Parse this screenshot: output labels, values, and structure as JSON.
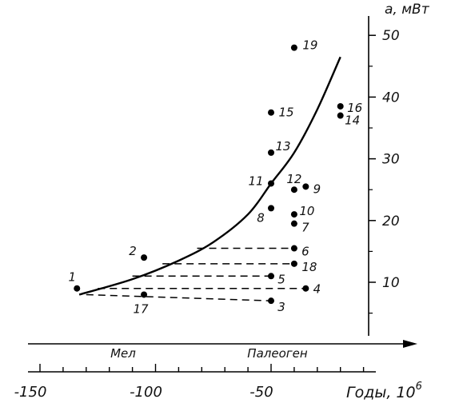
{
  "chart_data": {
    "type": "scatter",
    "ylabel": "a, мВт",
    "xlabel": "Годы, 10",
    "xlabel_exponent": "6",
    "xlim": [
      -150,
      0
    ],
    "ylim": [
      0,
      55
    ],
    "x_ticks": [
      -150,
      -100,
      -50
    ],
    "x_tick_labels": [
      "-150",
      "-100",
      "-50"
    ],
    "y_ticks": [
      10,
      20,
      30,
      40,
      50
    ],
    "y_tick_labels": [
      "10",
      "20",
      "30",
      "40",
      "50"
    ],
    "periods": [
      "Мел",
      "Палеоген"
    ],
    "points": [
      {
        "label": "1",
        "x": -134,
        "y": 9
      },
      {
        "label": "2",
        "x": -105,
        "y": 14
      },
      {
        "label": "3",
        "x": -50,
        "y": 7
      },
      {
        "label": "4",
        "x": -35,
        "y": 9
      },
      {
        "label": "5",
        "x": -50,
        "y": 11
      },
      {
        "label": "6",
        "x": -40,
        "y": 15.5
      },
      {
        "label": "7",
        "x": -40,
        "y": 19.5
      },
      {
        "label": "8",
        "x": -50,
        "y": 22
      },
      {
        "label": "9",
        "x": -35,
        "y": 25.5
      },
      {
        "label": "10",
        "x": -40,
        "y": 21
      },
      {
        "label": "11",
        "x": -50,
        "y": 26
      },
      {
        "label": "12",
        "x": -40,
        "y": 25
      },
      {
        "label": "13",
        "x": -50,
        "y": 31
      },
      {
        "label": "14",
        "x": -20,
        "y": 37
      },
      {
        "label": "15",
        "x": -50,
        "y": 37.5
      },
      {
        "label": "16",
        "x": -20,
        "y": 38.5
      },
      {
        "label": "17",
        "x": -105,
        "y": 8
      },
      {
        "label": "18",
        "x": -40,
        "y": 13
      },
      {
        "label": "19",
        "x": -40,
        "y": 48
      }
    ],
    "curve": [
      [
        -133,
        8
      ],
      [
        -110,
        10.5
      ],
      [
        -90,
        13.5
      ],
      [
        -75,
        16.5
      ],
      [
        -60,
        21
      ],
      [
        -50,
        26
      ],
      [
        -40,
        31
      ],
      [
        -30,
        38
      ],
      [
        -20,
        46.5
      ]
    ],
    "dashed_lines": [
      {
        "from": [
          -130,
          8
        ],
        "to": [
          -50,
          7
        ]
      },
      {
        "from": [
          -125,
          9
        ],
        "to": [
          -35,
          9
        ]
      },
      {
        "from": [
          -110,
          11
        ],
        "to": [
          -50,
          11
        ]
      },
      {
        "from": [
          -97,
          13
        ],
        "to": [
          -40,
          13
        ]
      },
      {
        "from": [
          -82,
          15.5
        ],
        "to": [
          -40,
          15.5
        ]
      }
    ]
  }
}
